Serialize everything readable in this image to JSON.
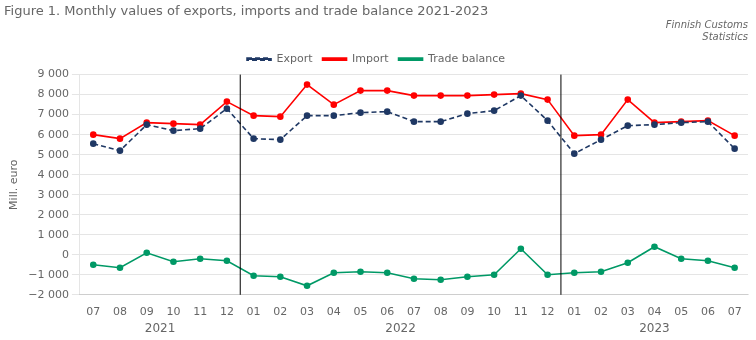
{
  "chart_data": {
    "type": "line",
    "title": "Figure 1. Monthly values of exports, imports and trade balance 2021-2023",
    "subtitle": "Finnish Customs\nStatistics",
    "ylabel": "Mill. euro",
    "categories": [
      "07",
      "08",
      "09",
      "10",
      "11",
      "12",
      "01",
      "02",
      "03",
      "04",
      "05",
      "06",
      "07",
      "08",
      "09",
      "10",
      "11",
      "12",
      "01",
      "02",
      "03",
      "04",
      "05",
      "06",
      "07"
    ],
    "annotations": [
      "2021",
      "2022",
      "2023"
    ],
    "series": [
      {
        "name": "Export",
        "color": "#1F3864",
        "line_style": "dashed",
        "marker": "circle",
        "values": [
          5550,
          5200,
          6500,
          6200,
          6300,
          7300,
          5800,
          5750,
          6950,
          6950,
          7100,
          7150,
          6650,
          6650,
          7050,
          7200,
          7950,
          6700,
          5050,
          5750,
          6450,
          6500,
          6600,
          6650,
          5300
        ]
      },
      {
        "name": "Import",
        "color": "#FF0000",
        "line_style": "solid",
        "marker": "circle",
        "values": [
          6000,
          5800,
          6600,
          6550,
          6500,
          7650,
          6950,
          6900,
          8500,
          7500,
          8200,
          8200,
          7950,
          7950,
          7950,
          8000,
          8050,
          7750,
          5950,
          6000,
          7750,
          6600,
          6650,
          6700,
          5950
        ]
      },
      {
        "name": "Trade balance",
        "color": "#009966",
        "line_style": "solid",
        "marker": "circle",
        "values": [
          -500,
          -650,
          100,
          -350,
          -200,
          -300,
          -1050,
          -1100,
          -1550,
          -900,
          -850,
          -900,
          -1200,
          -1250,
          -1100,
          -1000,
          300,
          -1000,
          -900,
          -850,
          -400,
          400,
          -200,
          -300,
          -650
        ]
      }
    ],
    "ylim": [
      -2000,
      9000
    ],
    "yticks": [
      {
        "value": -2000,
        "label": "−2 000"
      },
      {
        "value": -1000,
        "label": "−1 000"
      },
      0,
      {
        "value": 1000,
        "label": "1 000"
      },
      {
        "value": 2000,
        "label": "2 000"
      },
      {
        "value": 3000,
        "label": "3 000"
      },
      {
        "value": 4000,
        "label": "4 000"
      },
      {
        "value": 5000,
        "label": "5 000"
      },
      {
        "value": 6000,
        "label": "6 000"
      },
      {
        "value": 7000,
        "label": "7 000"
      },
      {
        "value": 8000,
        "label": "8 000"
      },
      {
        "value": 9000,
        "label": "9 000"
      }
    ],
    "grid": "y",
    "legend": "top"
  }
}
